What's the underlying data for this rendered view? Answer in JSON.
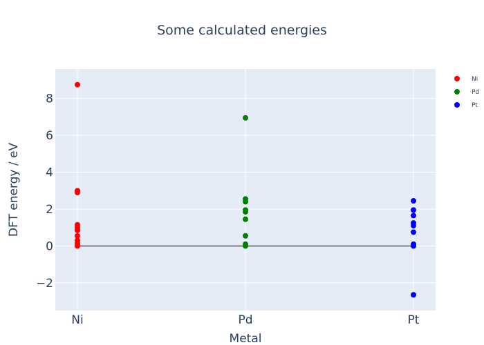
{
  "chart_data": {
    "type": "scatter",
    "title": "Some calculated energies",
    "xlabel": "Metal",
    "ylabel": "DFT energy / eV",
    "categories": [
      "Ni",
      "Pd",
      "Pt"
    ],
    "ylim": [
      -3.5,
      9.6
    ],
    "yticks": [
      -2,
      0,
      2,
      4,
      6,
      8
    ],
    "ytick_labels": [
      "−2",
      "0",
      "2",
      "4",
      "6",
      "8"
    ],
    "grid": true,
    "legend": "top-right",
    "reference_line": {
      "y": 0,
      "color": "#808080"
    },
    "series": [
      {
        "name": "Ni",
        "color": "#ff0000",
        "x": "Ni",
        "values": [
          8.75,
          3.0,
          2.9,
          1.15,
          1.0,
          0.9,
          0.85,
          0.55,
          0.3,
          0.15,
          0.05,
          0.0
        ]
      },
      {
        "name": "Pd",
        "color": "#008000",
        "x": "Pd",
        "values": [
          6.95,
          2.55,
          2.4,
          1.95,
          1.85,
          1.45,
          0.55,
          0.1,
          0.0
        ]
      },
      {
        "name": "Pt",
        "color": "#0000ff",
        "x": "Pt",
        "values": [
          2.45,
          1.95,
          1.65,
          1.25,
          1.1,
          0.75,
          0.1,
          0.0,
          -2.65
        ]
      }
    ]
  }
}
